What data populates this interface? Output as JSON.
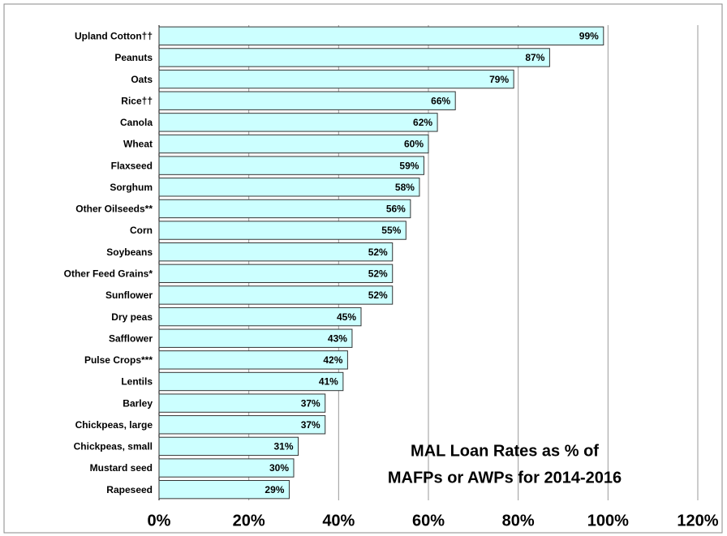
{
  "chart_data": {
    "type": "hbar",
    "title": [
      "MAL Loan Rates as % of",
      "MAFPs or AWPs for 2014-2016"
    ],
    "categories": [
      "Upland Cotton††",
      "Peanuts",
      "Oats",
      "Rice††",
      "Canola",
      "Wheat",
      "Flaxseed",
      "Sorghum",
      "Other Oilseeds**",
      "Corn",
      "Soybeans",
      "Other Feed Grains*",
      "Sunflower",
      "Dry peas",
      "Safflower",
      "Pulse Crops***",
      "Lentils",
      "Barley",
      "Chickpeas, large",
      "Chickpeas, small",
      "Mustard seed",
      "Rapeseed"
    ],
    "values": [
      99,
      87,
      79,
      66,
      62,
      60,
      59,
      58,
      56,
      55,
      52,
      52,
      52,
      45,
      43,
      42,
      41,
      37,
      37,
      31,
      30,
      29
    ],
    "value_labels": [
      "99%",
      "87%",
      "79%",
      "66%",
      "62%",
      "60%",
      "59%",
      "58%",
      "56%",
      "55%",
      "52%",
      "52%",
      "52%",
      "45%",
      "43%",
      "42%",
      "41%",
      "37%",
      "37%",
      "31%",
      "30%",
      "29%"
    ],
    "color": "#ccffff",
    "xlim": [
      0,
      120
    ],
    "xticks": [
      {
        "value": 0,
        "label": "0%"
      },
      {
        "value": 20,
        "label": "20%"
      },
      {
        "value": 40,
        "label": "40%"
      },
      {
        "value": 60,
        "label": "60%"
      },
      {
        "value": 80,
        "label": "80%"
      },
      {
        "value": 100,
        "label": "100%"
      },
      {
        "value": 120,
        "label": "120%"
      }
    ],
    "grid": true
  }
}
